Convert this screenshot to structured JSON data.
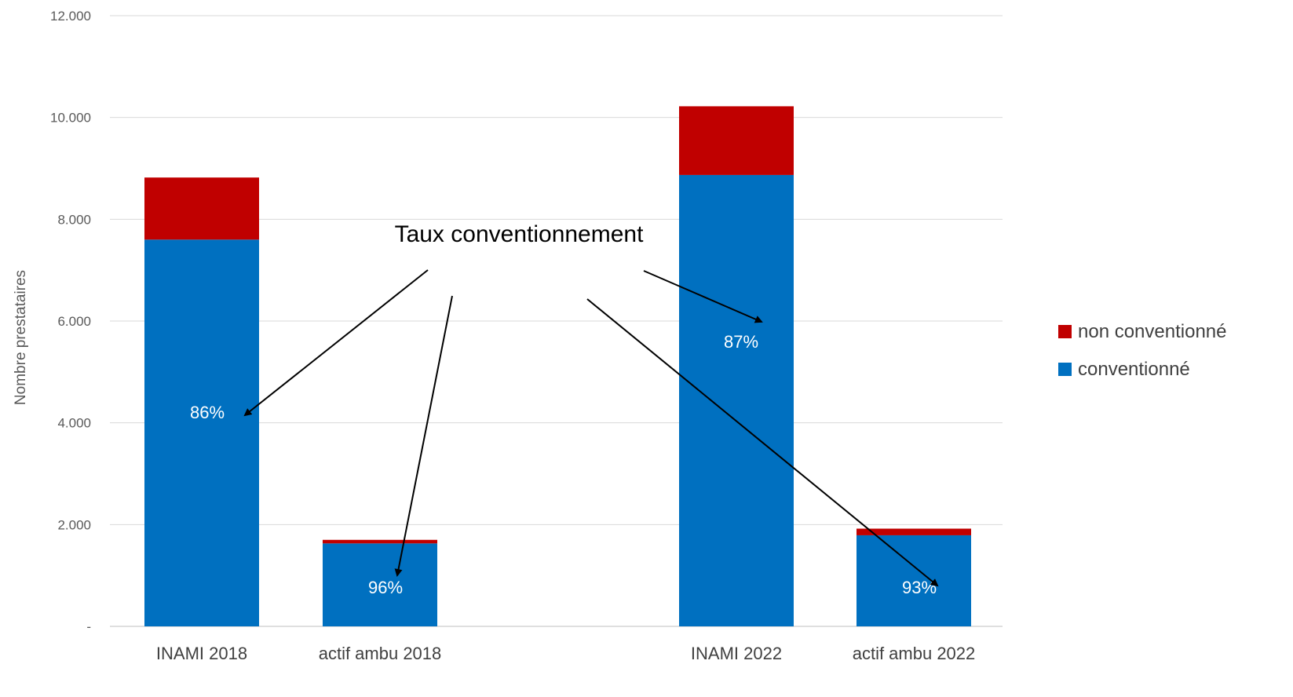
{
  "chart_data": {
    "type": "bar",
    "stacked": true,
    "categories": [
      "INAMI 2018",
      "actif ambu 2018",
      "INAMI 2022",
      "actif ambu 2022"
    ],
    "series": [
      {
        "name": "conventionné",
        "color": "#0070C0",
        "values": [
          7600,
          1630,
          8870,
          1790
        ]
      },
      {
        "name": "non conventionné",
        "color": "#C00000",
        "values": [
          1220,
          70,
          1350,
          130
        ]
      }
    ],
    "data_labels": [
      "86%",
      "96%",
      "87%",
      "93%"
    ],
    "annotation": "Taux conventionnement",
    "ylabel": "Nombre prestataires",
    "ylim": [
      0,
      12000
    ],
    "y_ticks": [
      {
        "value": 0,
        "label": "-"
      },
      {
        "value": 2000,
        "label": "2.000"
      },
      {
        "value": 4000,
        "label": "4.000"
      },
      {
        "value": 6000,
        "label": "6.000"
      },
      {
        "value": 8000,
        "label": "8.000"
      },
      {
        "value": 10000,
        "label": "10.000"
      },
      {
        "value": 12000,
        "label": "12.000"
      }
    ],
    "grid": true,
    "legend_position": "right"
  }
}
